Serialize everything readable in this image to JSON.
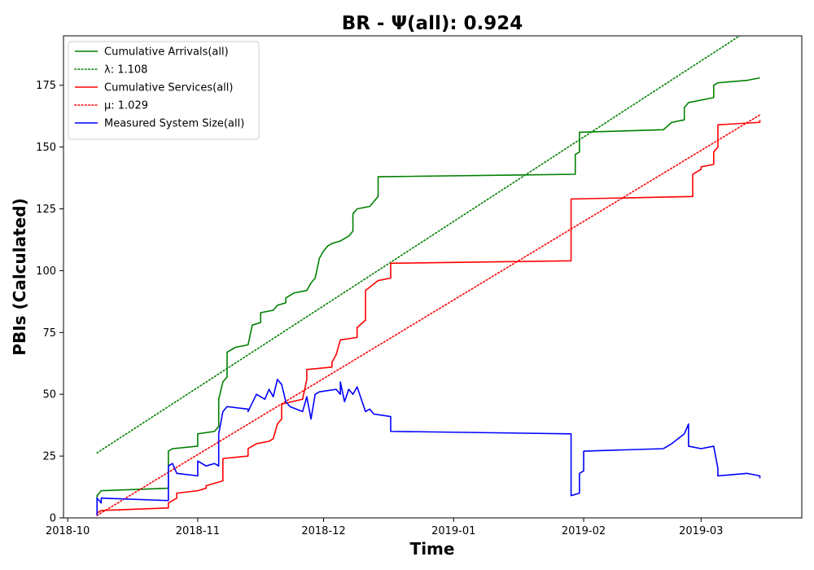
{
  "chart_data": {
    "type": "line",
    "title": "BR -  Ψ(all): 0.924",
    "xlabel": "Time",
    "ylabel": "PBIs (Calculated)",
    "xlim": [
      "2018-09-30",
      "2019-03-25"
    ],
    "ylim": [
      0,
      195
    ],
    "x_ticks": [
      "2018-10",
      "2018-11",
      "2018-12",
      "2019-01",
      "2019-02",
      "2019-03"
    ],
    "y_ticks": [
      0,
      25,
      50,
      75,
      100,
      125,
      150,
      175
    ],
    "grid": false,
    "legend_position": "top-left",
    "series": [
      {
        "name": "Cumulative Arrivals(all)",
        "style": "solid",
        "color": "#008000",
        "points": [
          [
            "2018-10-08",
            6
          ],
          [
            "2018-10-08",
            9
          ],
          [
            "2018-10-09",
            11
          ],
          [
            "2018-10-25",
            12
          ],
          [
            "2018-10-25",
            27
          ],
          [
            "2018-10-26",
            28
          ],
          [
            "2018-11-01",
            29
          ],
          [
            "2018-11-01",
            34
          ],
          [
            "2018-11-05",
            35
          ],
          [
            "2018-11-06",
            37
          ],
          [
            "2018-11-06",
            48
          ],
          [
            "2018-11-07",
            55
          ],
          [
            "2018-11-08",
            57
          ],
          [
            "2018-11-08",
            67
          ],
          [
            "2018-11-09",
            68
          ],
          [
            "2018-11-10",
            69
          ],
          [
            "2018-11-13",
            70
          ],
          [
            "2018-11-14",
            78
          ],
          [
            "2018-11-16",
            79
          ],
          [
            "2018-11-16",
            83
          ],
          [
            "2018-11-19",
            84
          ],
          [
            "2018-11-20",
            86
          ],
          [
            "2018-11-22",
            87
          ],
          [
            "2018-11-22",
            89
          ],
          [
            "2018-11-24",
            91
          ],
          [
            "2018-11-27",
            92
          ],
          [
            "2018-11-28",
            95
          ],
          [
            "2018-11-29",
            97
          ],
          [
            "2018-11-30",
            105
          ],
          [
            "2018-12-01",
            108
          ],
          [
            "2018-12-02",
            110
          ],
          [
            "2018-12-03",
            111
          ],
          [
            "2018-12-05",
            112
          ],
          [
            "2018-12-07",
            114
          ],
          [
            "2018-12-08",
            116
          ],
          [
            "2018-12-08",
            123
          ],
          [
            "2018-12-09",
            125
          ],
          [
            "2018-12-12",
            126
          ],
          [
            "2018-12-13",
            128
          ],
          [
            "2018-12-14",
            130
          ],
          [
            "2018-12-14",
            138
          ],
          [
            "2019-01-30",
            139
          ],
          [
            "2019-01-30",
            147
          ],
          [
            "2019-01-31",
            148
          ],
          [
            "2019-01-31",
            156
          ],
          [
            "2019-02-20",
            157
          ],
          [
            "2019-02-22",
            160
          ],
          [
            "2019-02-25",
            161
          ],
          [
            "2019-02-25",
            166
          ],
          [
            "2019-02-26",
            168
          ],
          [
            "2019-03-04",
            170
          ],
          [
            "2019-03-04",
            175
          ],
          [
            "2019-03-05",
            176
          ],
          [
            "2019-03-12",
            177
          ],
          [
            "2019-03-15",
            178
          ]
        ]
      },
      {
        "name": "λ: 1.108",
        "style": "dotted",
        "color": "#008000",
        "points": [
          [
            "2018-10-08",
            26.3
          ],
          [
            "2019-03-15",
            200.3
          ]
        ]
      },
      {
        "name": "Cumulative Services(all)",
        "style": "solid",
        "color": "#ff0000",
        "points": [
          [
            "2018-10-08",
            1
          ],
          [
            "2018-10-08",
            2
          ],
          [
            "2018-10-09",
            3
          ],
          [
            "2018-10-25",
            4
          ],
          [
            "2018-10-25",
            6
          ],
          [
            "2018-10-27",
            8
          ],
          [
            "2018-10-27",
            10
          ],
          [
            "2018-11-01",
            11
          ],
          [
            "2018-11-03",
            12
          ],
          [
            "2018-11-03",
            13
          ],
          [
            "2018-11-07",
            15
          ],
          [
            "2018-11-07",
            24
          ],
          [
            "2018-11-13",
            25
          ],
          [
            "2018-11-13",
            28
          ],
          [
            "2018-11-15",
            30
          ],
          [
            "2018-11-18",
            31
          ],
          [
            "2018-11-19",
            32
          ],
          [
            "2018-11-20",
            38
          ],
          [
            "2018-11-21",
            40
          ],
          [
            "2018-11-21",
            46
          ],
          [
            "2018-11-26",
            48
          ],
          [
            "2018-11-27",
            56
          ],
          [
            "2018-11-27",
            60
          ],
          [
            "2018-12-03",
            61
          ],
          [
            "2018-12-03",
            63
          ],
          [
            "2018-12-04",
            66
          ],
          [
            "2018-12-05",
            72
          ],
          [
            "2018-12-09",
            73
          ],
          [
            "2018-12-09",
            77
          ],
          [
            "2018-12-11",
            80
          ],
          [
            "2018-12-11",
            92
          ],
          [
            "2018-12-14",
            96
          ],
          [
            "2018-12-17",
            97
          ],
          [
            "2018-12-17",
            103
          ],
          [
            "2019-01-29",
            104
          ],
          [
            "2019-01-29",
            129
          ],
          [
            "2019-02-27",
            130
          ],
          [
            "2019-02-27",
            139
          ],
          [
            "2019-03-01",
            141
          ],
          [
            "2019-03-01",
            142
          ],
          [
            "2019-03-04",
            143
          ],
          [
            "2019-03-04",
            148
          ],
          [
            "2019-03-05",
            150
          ],
          [
            "2019-03-05",
            159
          ],
          [
            "2019-03-15",
            160
          ],
          [
            "2019-03-15",
            161
          ]
        ]
      },
      {
        "name": "μ: 1.029",
        "style": "dotted",
        "color": "#ff0000",
        "points": [
          [
            "2018-10-08",
            1.0
          ],
          [
            "2019-03-15",
            163.0
          ]
        ]
      },
      {
        "name": "Measured System Size(all)",
        "style": "solid",
        "color": "#0000ff",
        "points": [
          [
            "2018-10-08",
            1
          ],
          [
            "2018-10-08",
            8
          ],
          [
            "2018-10-09",
            6
          ],
          [
            "2018-10-09",
            8
          ],
          [
            "2018-10-25",
            7
          ],
          [
            "2018-10-25",
            10
          ],
          [
            "2018-10-25",
            21
          ],
          [
            "2018-10-26",
            22
          ],
          [
            "2018-10-27",
            18
          ],
          [
            "2018-11-01",
            17
          ],
          [
            "2018-11-01",
            23
          ],
          [
            "2018-11-03",
            21
          ],
          [
            "2018-11-05",
            22
          ],
          [
            "2018-11-06",
            21
          ],
          [
            "2018-11-06",
            34
          ],
          [
            "2018-11-07",
            43
          ],
          [
            "2018-11-08",
            45
          ],
          [
            "2018-11-13",
            44
          ],
          [
            "2018-11-13",
            43
          ],
          [
            "2018-11-15",
            50
          ],
          [
            "2018-11-17",
            48
          ],
          [
            "2018-11-18",
            52
          ],
          [
            "2018-11-19",
            49
          ],
          [
            "2018-11-20",
            56
          ],
          [
            "2018-11-21",
            54
          ],
          [
            "2018-11-22",
            47
          ],
          [
            "2018-11-23",
            45
          ],
          [
            "2018-11-26",
            43
          ],
          [
            "2018-11-27",
            49
          ],
          [
            "2018-11-28",
            40
          ],
          [
            "2018-11-29",
            50
          ],
          [
            "2018-11-30",
            51
          ],
          [
            "2018-12-04",
            52
          ],
          [
            "2018-12-05",
            50
          ],
          [
            "2018-12-05",
            55
          ],
          [
            "2018-12-06",
            47
          ],
          [
            "2018-12-07",
            52
          ],
          [
            "2018-12-08",
            50
          ],
          [
            "2018-12-09",
            53
          ],
          [
            "2018-12-11",
            43
          ],
          [
            "2018-12-12",
            44
          ],
          [
            "2018-12-13",
            42
          ],
          [
            "2018-12-17",
            41
          ],
          [
            "2018-12-17",
            35
          ],
          [
            "2019-01-29",
            34
          ],
          [
            "2019-01-29",
            9
          ],
          [
            "2019-01-31",
            10
          ],
          [
            "2019-01-31",
            18
          ],
          [
            "2019-02-01",
            19
          ],
          [
            "2019-02-01",
            27
          ],
          [
            "2019-02-20",
            28
          ],
          [
            "2019-02-22",
            30
          ],
          [
            "2019-02-25",
            34
          ],
          [
            "2019-02-26",
            38
          ],
          [
            "2019-02-26",
            29
          ],
          [
            "2019-03-01",
            28
          ],
          [
            "2019-03-04",
            29
          ],
          [
            "2019-03-05",
            20
          ],
          [
            "2019-03-05",
            17
          ],
          [
            "2019-03-12",
            18
          ],
          [
            "2019-03-15",
            17
          ],
          [
            "2019-03-15",
            16
          ]
        ]
      }
    ]
  }
}
